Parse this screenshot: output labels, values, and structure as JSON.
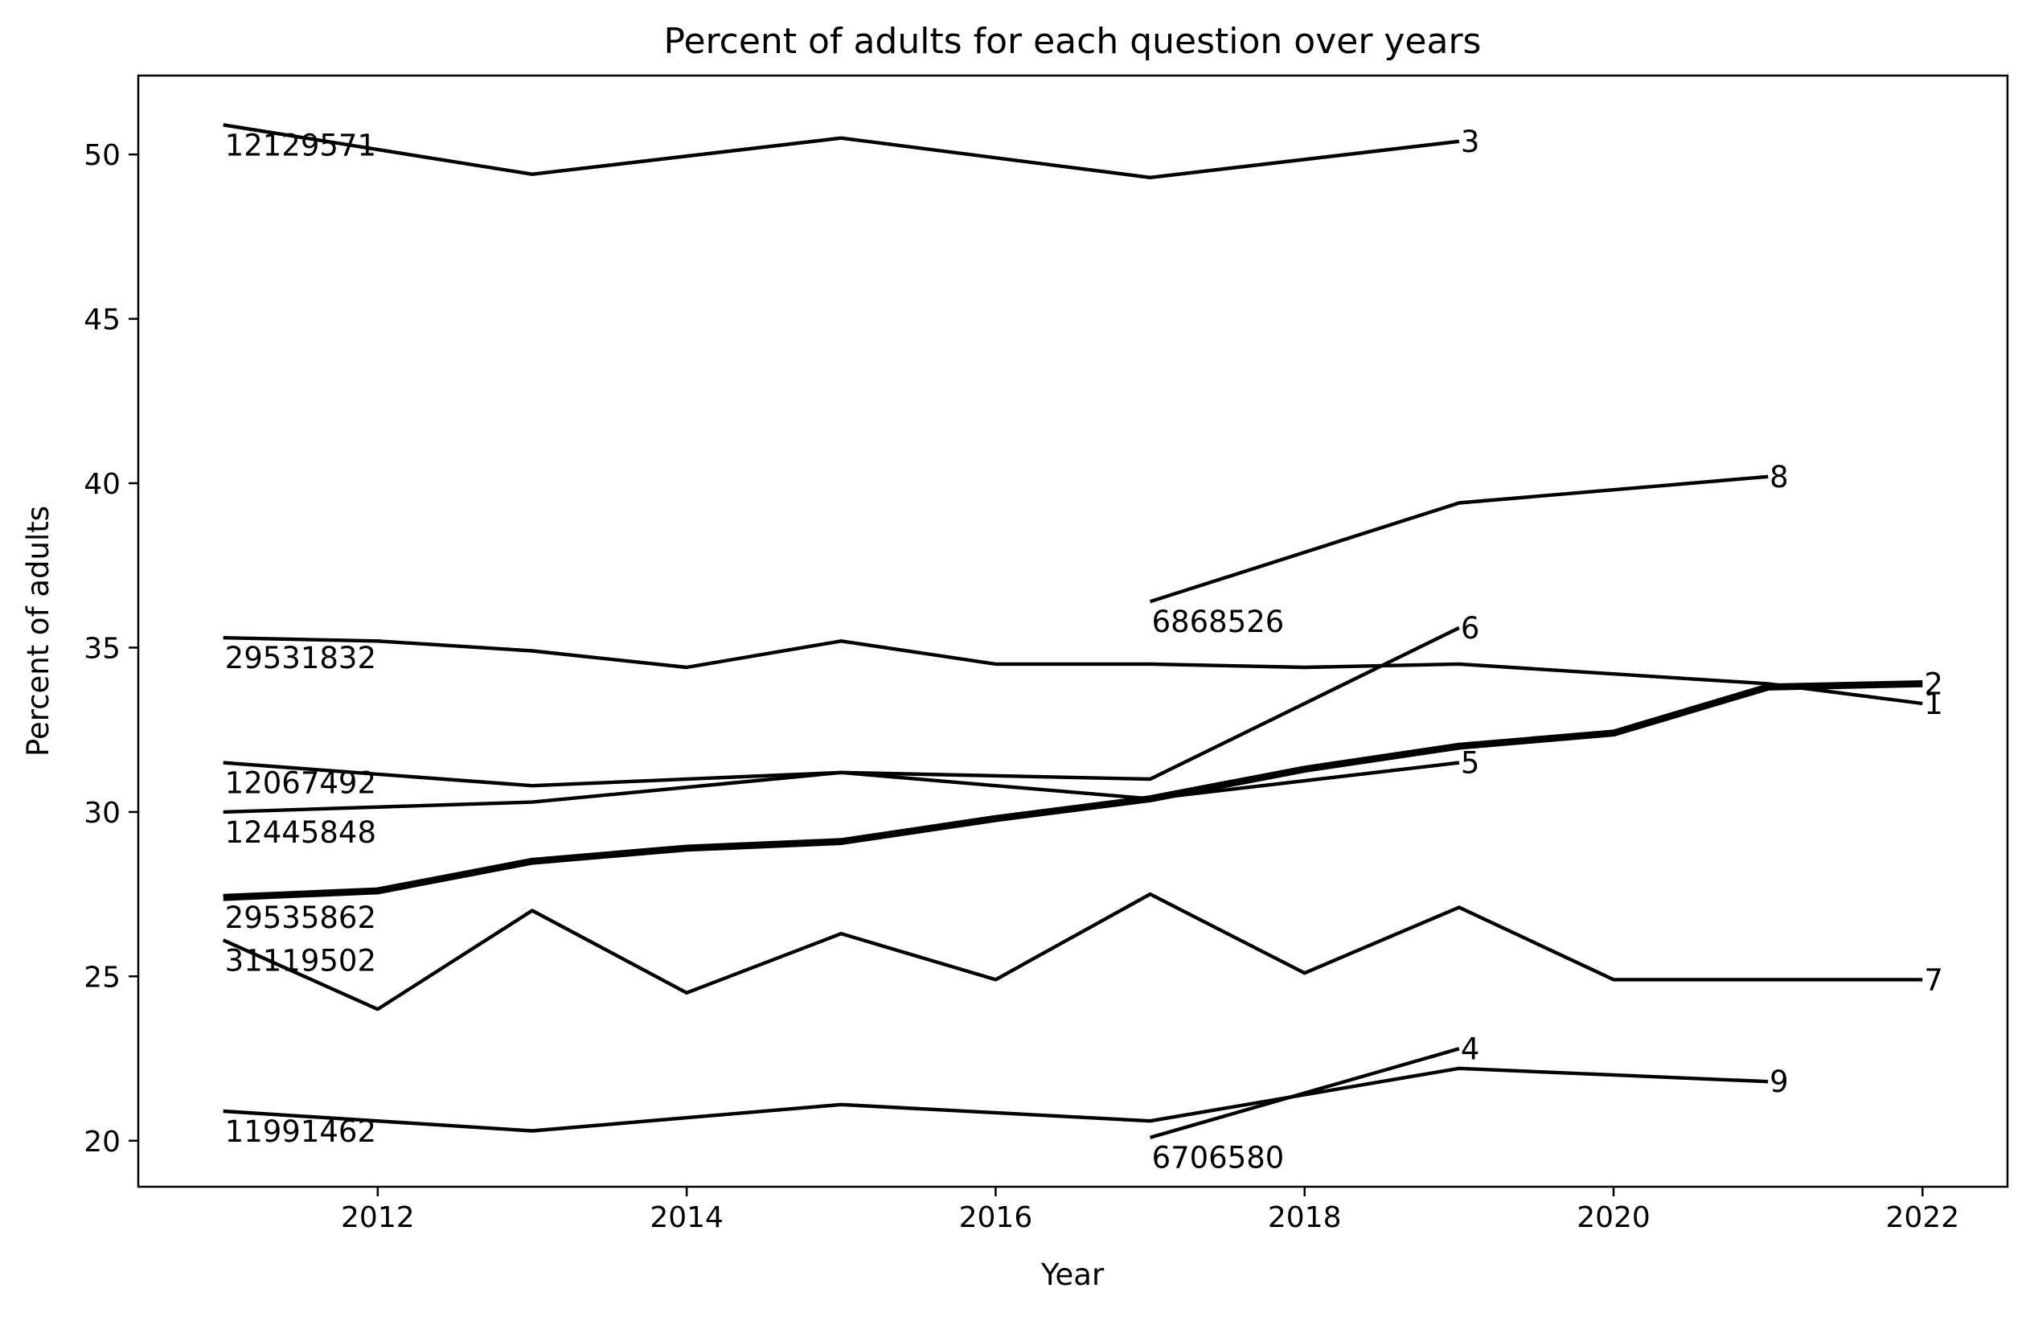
{
  "chart_data": {
    "type": "line",
    "title": "Percent of adults for each question over years",
    "xlabel": "Year",
    "ylabel": "Percent of adults",
    "xlim": [
      2010.45,
      2022.55
    ],
    "ylim": [
      18.6,
      52.4
    ],
    "x_ticks": [
      2012,
      2014,
      2016,
      2018,
      2020,
      2022
    ],
    "y_ticks": [
      20,
      25,
      30,
      35,
      40,
      45,
      50
    ],
    "grid": false,
    "legend": "none",
    "line_color": "#000000",
    "series": [
      {
        "start_label": "12129571",
        "end_label": "3",
        "width": 2,
        "points": [
          [
            2011,
            50.9
          ],
          [
            2013,
            49.4
          ],
          [
            2015,
            50.5
          ],
          [
            2017,
            49.3
          ],
          [
            2019,
            50.4
          ]
        ]
      },
      {
        "start_label": "29531832",
        "end_label": "1",
        "width": 2,
        "points": [
          [
            2011,
            35.3
          ],
          [
            2012,
            35.2
          ],
          [
            2013,
            34.9
          ],
          [
            2014,
            34.4
          ],
          [
            2015,
            35.2
          ],
          [
            2016,
            34.5
          ],
          [
            2017,
            34.5
          ],
          [
            2018,
            34.4
          ],
          [
            2019,
            34.5
          ],
          [
            2020,
            34.2
          ],
          [
            2021,
            33.9
          ],
          [
            2022,
            33.3
          ]
        ]
      },
      {
        "start_label": "6868526",
        "end_label": "8",
        "width": 2,
        "points": [
          [
            2017,
            36.4
          ],
          [
            2019,
            39.4
          ],
          [
            2021,
            40.2
          ]
        ]
      },
      {
        "start_label": "12067492",
        "end_label": "6",
        "width": 2,
        "points": [
          [
            2011,
            31.5
          ],
          [
            2013,
            30.8
          ],
          [
            2015,
            31.2
          ],
          [
            2017,
            31.0
          ],
          [
            2019,
            35.6
          ]
        ]
      },
      {
        "start_label": "12445848",
        "end_label": "5",
        "width": 2,
        "points": [
          [
            2011,
            30.0
          ],
          [
            2013,
            30.3
          ],
          [
            2015,
            31.2
          ],
          [
            2017,
            30.4
          ],
          [
            2019,
            31.5
          ]
        ]
      },
      {
        "start_label": "29535862",
        "end_label": "2",
        "width": 4,
        "points": [
          [
            2011,
            27.4
          ],
          [
            2012,
            27.6
          ],
          [
            2013,
            28.5
          ],
          [
            2014,
            28.9
          ],
          [
            2015,
            29.1
          ],
          [
            2016,
            29.8
          ],
          [
            2017,
            30.4
          ],
          [
            2018,
            31.3
          ],
          [
            2019,
            32.0
          ],
          [
            2020,
            32.4
          ],
          [
            2021,
            33.8
          ],
          [
            2022,
            33.9
          ]
        ]
      },
      {
        "start_label": "31119502",
        "end_label": "7",
        "width": 2,
        "points": [
          [
            2011,
            26.1
          ],
          [
            2012,
            24.0
          ],
          [
            2013,
            27.0
          ],
          [
            2014,
            24.5
          ],
          [
            2015,
            26.3
          ],
          [
            2016,
            24.9
          ],
          [
            2017,
            27.5
          ],
          [
            2018,
            25.1
          ],
          [
            2019,
            27.1
          ],
          [
            2020,
            24.9
          ],
          [
            2021,
            24.9
          ],
          [
            2022,
            24.9
          ]
        ]
      },
      {
        "start_label": "11991462",
        "end_label": "9",
        "width": 2,
        "points": [
          [
            2011,
            20.9
          ],
          [
            2013,
            20.3
          ],
          [
            2015,
            21.1
          ],
          [
            2017,
            20.6
          ],
          [
            2019,
            22.2
          ],
          [
            2021,
            21.8
          ]
        ]
      },
      {
        "start_label": "6706580",
        "end_label": "4",
        "width": 2,
        "points": [
          [
            2017,
            20.1
          ],
          [
            2019,
            22.8
          ]
        ]
      }
    ]
  }
}
